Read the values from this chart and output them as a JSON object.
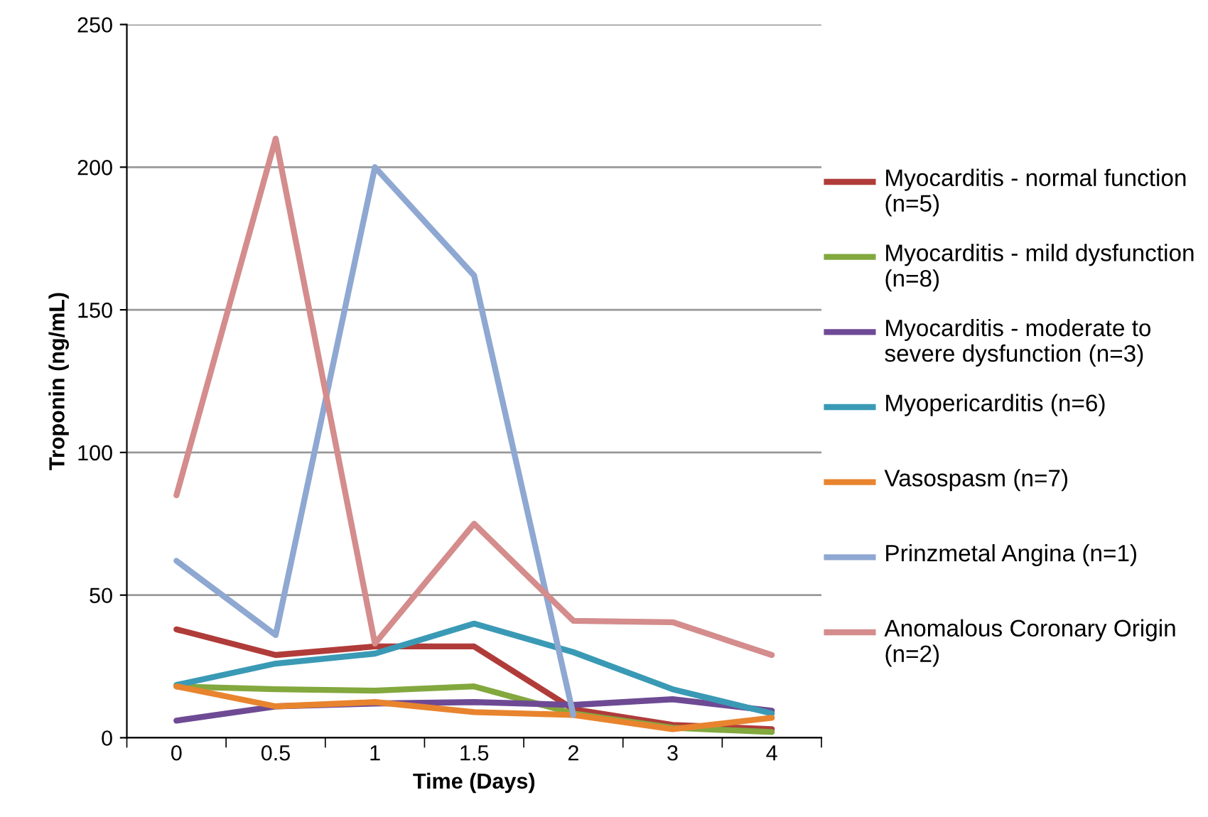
{
  "chart_data": {
    "type": "line",
    "xlabel": "Time (Days)",
    "ylabel": "Troponin (ng/mL)",
    "categories": [
      "0",
      "0.5",
      "1",
      "1.5",
      "2",
      "3",
      "4"
    ],
    "ylim": [
      0,
      250
    ],
    "yticks": [
      0,
      50,
      100,
      150,
      200,
      250
    ],
    "grid": "y",
    "legend": "right",
    "marker": "none",
    "line_style": "solid",
    "series": [
      {
        "name": "Myocarditis - normal function (n=5)",
        "color": "#b03c3a",
        "values": [
          38,
          29,
          32,
          32,
          10,
          4.5,
          3
        ]
      },
      {
        "name": "Myocarditis - mild dysfunction (n=8)",
        "color": "#82a83e",
        "values": [
          18,
          17,
          16.5,
          18,
          8.5,
          3.5,
          2
        ]
      },
      {
        "name": "Myocarditis - moderate to severe dysfunction (n=3)",
        "color": "#6e4a94",
        "values": [
          6,
          11,
          12,
          12.5,
          11.5,
          13.5,
          9.5
        ]
      },
      {
        "name": "Myopericarditis (n=6)",
        "color": "#3a9ab5",
        "values": [
          18.5,
          26,
          29.5,
          40,
          30,
          17,
          8.5
        ]
      },
      {
        "name": "Vasospasm (n=7)",
        "color": "#e8842e",
        "values": [
          18,
          11,
          12.5,
          9,
          8,
          3,
          7
        ]
      },
      {
        "name": "Prinzmetal Angina (n=1)",
        "color": "#8ea8d2",
        "values": [
          62,
          36,
          200,
          162,
          8,
          null,
          null
        ]
      },
      {
        "name": "Anomalous Coronary Origin (n=2)",
        "color": "#d48c8c",
        "values": [
          85,
          210,
          33,
          75,
          41,
          40.5,
          29
        ]
      }
    ]
  }
}
